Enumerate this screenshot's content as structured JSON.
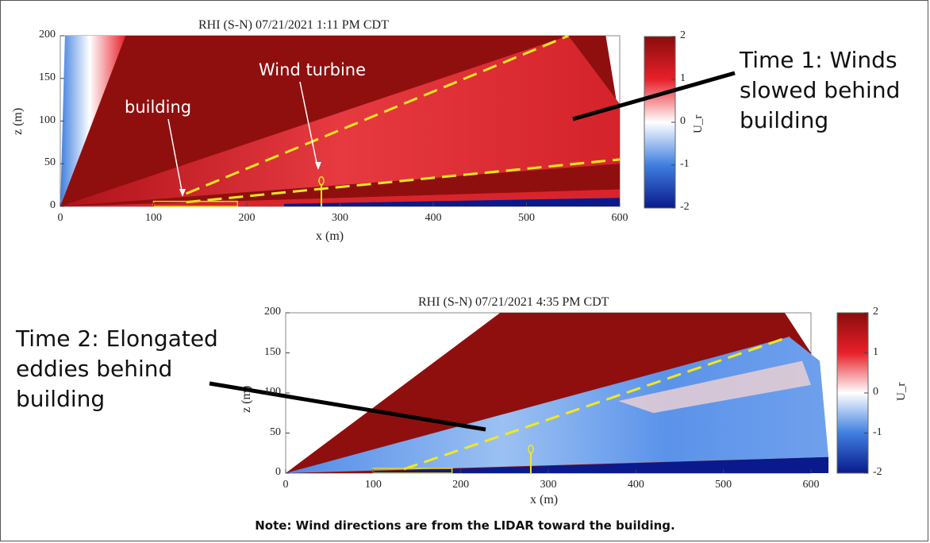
{
  "panels": [
    {
      "title": "RHI (S-N) 07/21/2021  1:11 PM CDT",
      "time_label": "Time 1: Winds\nslowed behind\nbuilding",
      "annotations": [
        "building",
        "Wind turbine"
      ]
    },
    {
      "title": "RHI (S-N) 07/21/2021  4:35 PM CDT",
      "time_label": "Time 2: Elongated\neddies behind\nbuilding",
      "annotations": []
    }
  ],
  "note": "Note:  Wind directions are from the LIDAR toward the building.",
  "chart_data": [
    {
      "type": "heatmap",
      "title": "RHI (S-N) 07/21/2021  1:11 PM CDT",
      "xlabel": "x (m)",
      "ylabel": "z (m)",
      "colorbar_label": "U_r",
      "xlim": [
        0,
        600
      ],
      "ylim": [
        0,
        200
      ],
      "clim": [
        -2,
        2
      ],
      "x_ticks": [
        "0",
        "100",
        "200",
        "300",
        "400",
        "500",
        "600"
      ],
      "y_ticks": [
        "0",
        "50",
        "100",
        "150",
        "200"
      ],
      "colorbar_ticks": [
        "2",
        "1",
        "0",
        "-1",
        "-2"
      ],
      "colormap": [
        "#0a1a8c",
        "#3f7fe0",
        "#ffffff",
        "#e8202a",
        "#8a0c0c"
      ],
      "wake_boundaries": [
        {
          "x": [
            135,
            545
          ],
          "z": [
            15,
            200
          ]
        },
        {
          "x": [
            135,
            600
          ],
          "z": [
            5,
            55
          ]
        }
      ],
      "building": {
        "x": [
          100,
          190
        ],
        "z": [
          0,
          5
        ]
      },
      "wind_turbine": {
        "x": 280,
        "z": [
          0,
          30
        ]
      },
      "features": [
        {
          "region": "near-vertical beams at the lidar",
          "u_r": -1.2
        },
        {
          "region": "upper atmosphere",
          "u_r": 2
        },
        {
          "region": "wake region behind building",
          "u_r": 1.2
        },
        {
          "region": "near-ground layer",
          "u_r": -2
        }
      ]
    },
    {
      "type": "heatmap",
      "title": "RHI (S-N) 07/21/2021  4:35 PM CDT",
      "xlabel": "x (m)",
      "ylabel": "z (m)",
      "colorbar_label": "U_r",
      "xlim": [
        0,
        600
      ],
      "ylim": [
        0,
        200
      ],
      "clim": [
        -2,
        2
      ],
      "x_ticks": [
        "0",
        "100",
        "200",
        "300",
        "400",
        "500",
        "600"
      ],
      "y_ticks": [
        "0",
        "50",
        "100",
        "150",
        "200"
      ],
      "colorbar_ticks": [
        "2",
        "1",
        "0",
        "-1",
        "-2"
      ],
      "colormap": [
        "#0a1a8c",
        "#3f7fe0",
        "#ffffff",
        "#e8202a",
        "#8a0c0c"
      ],
      "wake_boundaries": [
        {
          "x": [
            135,
            575
          ],
          "z": [
            5,
            170
          ]
        }
      ],
      "building": {
        "x": [
          100,
          190
        ],
        "z": [
          0,
          5
        ]
      },
      "wind_turbine": {
        "x": 280,
        "z": [
          0,
          30
        ]
      },
      "features": [
        {
          "region": "upper atmosphere",
          "u_r": 2
        },
        {
          "region": "elongated eddies behind building",
          "u_r": -1
        },
        {
          "region": "near-ground layer",
          "u_r": -2
        }
      ]
    }
  ]
}
